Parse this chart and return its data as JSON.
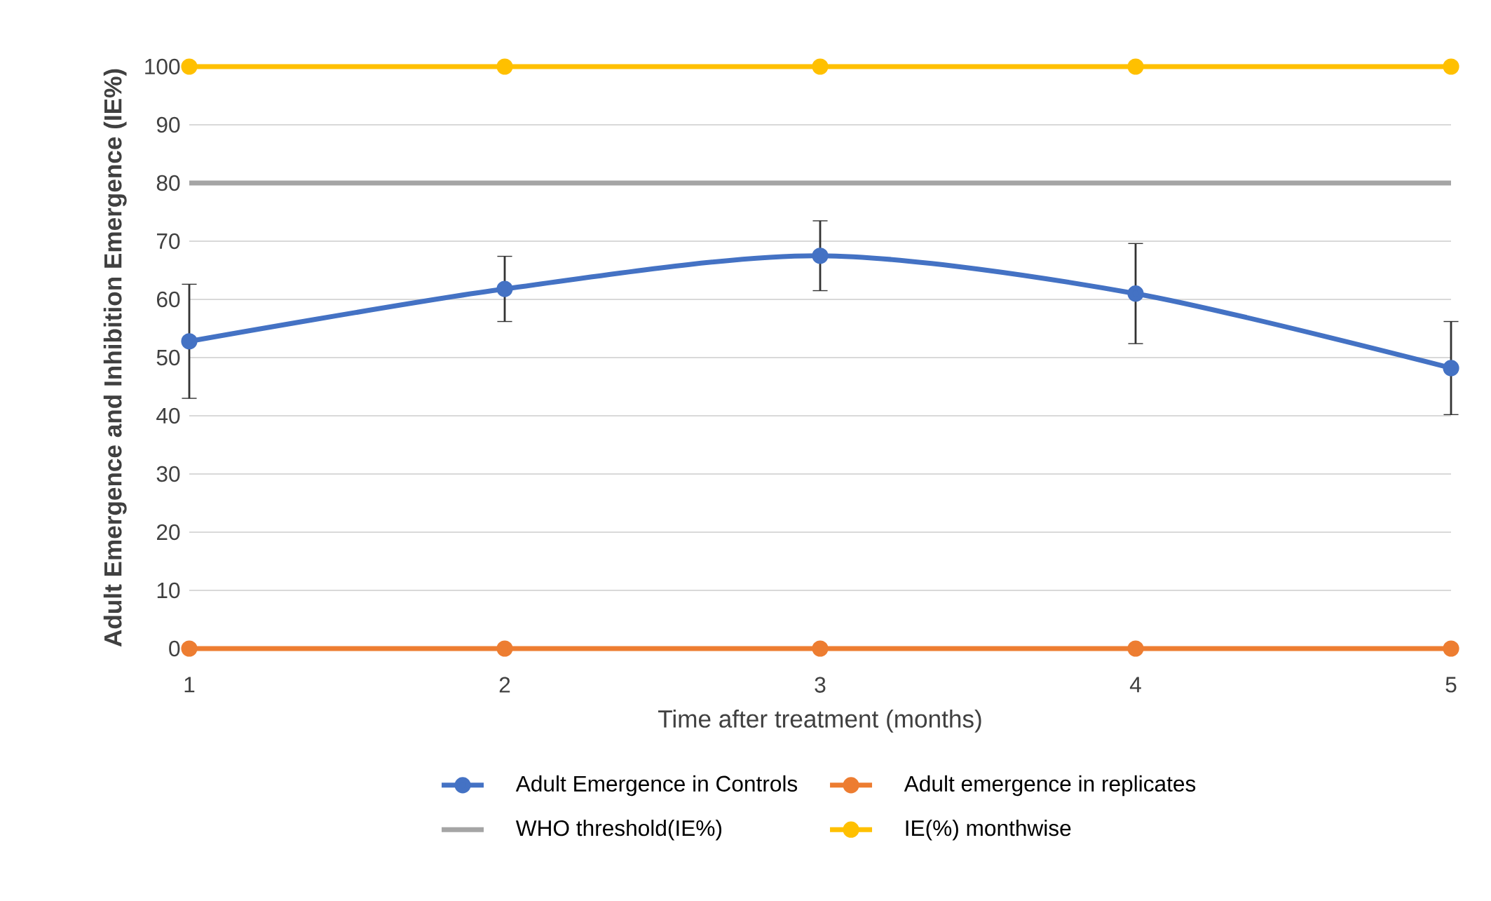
{
  "chart_data": {
    "type": "line",
    "xlabel": "Time after treatment (months)",
    "ylabel": "Adult Emergence and Inhibition Emergence (IE%)",
    "x": [
      1,
      2,
      3,
      4,
      5
    ],
    "xlim": [
      1,
      5
    ],
    "ylim": [
      0,
      100
    ],
    "xticks": [
      1,
      2,
      3,
      4,
      5
    ],
    "yticks": [
      0,
      10,
      20,
      30,
      40,
      50,
      60,
      70,
      80,
      90,
      100
    ],
    "grid": "y",
    "legend": "bottom",
    "marker": "circle",
    "line_style": "solid",
    "series": [
      {
        "name": "Adult Emergence in Controls",
        "color": "#4472c4",
        "values": [
          52.8,
          61.8,
          67.5,
          61,
          48.2
        ],
        "errors": [
          9.8,
          5.6,
          6,
          8.6,
          8
        ]
      },
      {
        "name": "Adult emergence in replicates",
        "color": "#ed7d31",
        "values": [
          0,
          0,
          0,
          0,
          0
        ]
      },
      {
        "name": "WHO threshold(IE%)",
        "color": "#a5a5a5",
        "values": [
          80,
          80,
          80,
          80,
          80
        ],
        "marker": "none"
      },
      {
        "name": "IE(%) monthwise",
        "color": "#ffc000",
        "values": [
          100,
          100,
          100,
          100,
          100
        ]
      }
    ]
  }
}
